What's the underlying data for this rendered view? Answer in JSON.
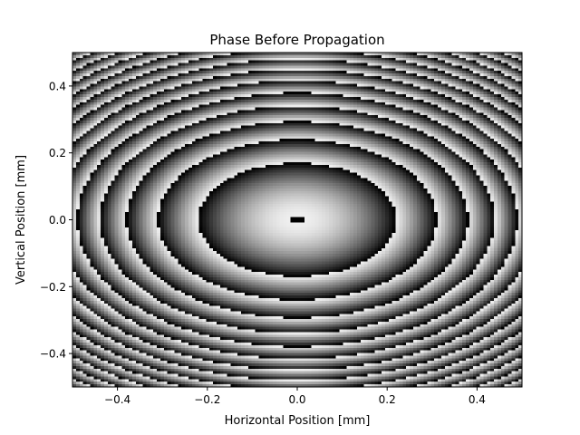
{
  "chart_data": {
    "type": "heatmap",
    "title": "Phase Before Propagation",
    "xlabel": "Horizontal Position [mm]",
    "ylabel": "Vertical Position [mm]",
    "xlim": [
      -0.5,
      0.5
    ],
    "ylim": [
      -0.5,
      0.5
    ],
    "x_ticks": [
      -0.4,
      -0.2,
      0.0,
      0.2,
      0.4
    ],
    "y_ticks": [
      -0.4,
      -0.2,
      0.0,
      0.2,
      0.4
    ],
    "x_tick_labels": [
      "−0.4",
      "−0.2",
      "0.0",
      "0.2",
      "0.4"
    ],
    "y_tick_labels": [
      "−0.4",
      "−0.2",
      "0.0",
      "0.2",
      "0.4"
    ],
    "grid": false,
    "colormap": "gray",
    "pattern": "wrapped quadratic phase (concentric rings)",
    "grid_cells": 128,
    "ring_edges_x_mm": [
      0.12,
      0.275,
      0.365,
      0.43,
      0.49
    ],
    "ring_edges_y_mm": [
      0.09,
      0.205,
      0.27,
      0.32,
      0.365,
      0.405,
      0.445,
      0.48
    ]
  }
}
